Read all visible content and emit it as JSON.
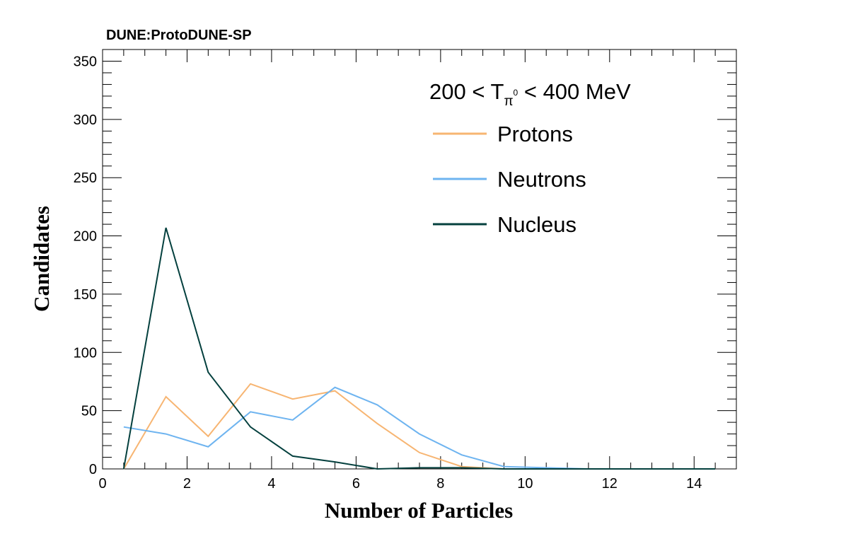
{
  "chart_data": {
    "type": "line",
    "header_label": "DUNE:ProtoDUNE-SP",
    "legend_title": {
      "pre": "200 < T",
      "sub": "π",
      "sup": "0",
      "post": " < 400 MeV"
    },
    "xlabel": "Number of Particles",
    "ylabel": "Candidates",
    "xlim": [
      0,
      15
    ],
    "ylim": [
      0,
      360
    ],
    "xticks": [
      0,
      2,
      4,
      6,
      8,
      10,
      12,
      14
    ],
    "yticks": [
      0,
      50,
      100,
      150,
      200,
      250,
      300,
      350
    ],
    "grid": false,
    "legend_position": "top-right",
    "x": [
      0.5,
      1.5,
      2.5,
      3.5,
      4.5,
      5.5,
      6.5,
      7.5,
      8.5,
      9.5,
      10.5,
      11.5,
      12.5,
      13.5,
      14.5
    ],
    "series": [
      {
        "name": "Protons",
        "color": "#f7b572",
        "values": [
          0,
          62,
          28,
          73,
          60,
          67,
          39,
          14,
          2,
          0,
          0,
          0,
          0,
          0,
          0
        ]
      },
      {
        "name": "Neutrons",
        "color": "#6eb4f0",
        "values": [
          36,
          30,
          19,
          49,
          42,
          70,
          55,
          30,
          12,
          2,
          1,
          0,
          0,
          0,
          0
        ]
      },
      {
        "name": "Nucleus",
        "color": "#04403e",
        "values": [
          0,
          207,
          83,
          36,
          11,
          6,
          0,
          1,
          1,
          0,
          0,
          0,
          0,
          0,
          0
        ]
      }
    ]
  }
}
